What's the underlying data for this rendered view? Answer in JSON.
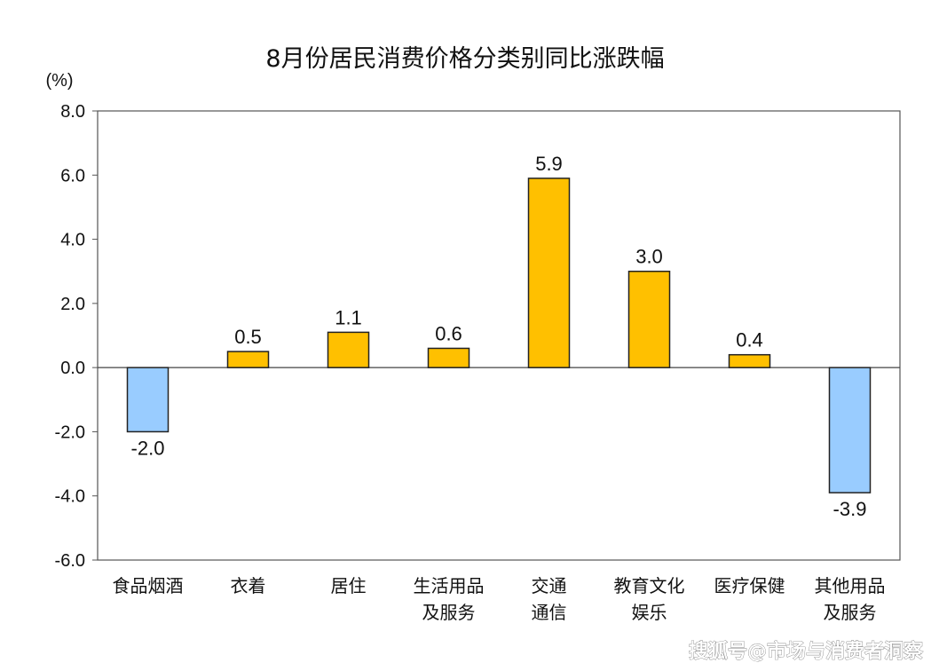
{
  "chart_data": {
    "type": "bar",
    "title": "8月份居民消费价格分类别同比涨跌幅",
    "unit_label": "(%)",
    "ylim": [
      -6.0,
      8.0
    ],
    "yticks": [
      "8.0",
      "6.0",
      "4.0",
      "2.0",
      "0.0",
      "-2.0",
      "-4.0",
      "-6.0"
    ],
    "ytick_values": [
      8,
      6,
      4,
      2,
      0,
      -2,
      -4,
      -6
    ],
    "categories": [
      [
        "食品烟酒"
      ],
      [
        "衣着"
      ],
      [
        "居住"
      ],
      [
        "生活用品",
        "及服务"
      ],
      [
        "交通",
        "通信"
      ],
      [
        "教育文化",
        "娱乐"
      ],
      [
        "医疗保健"
      ],
      [
        "其他用品",
        "及服务"
      ]
    ],
    "values": [
      -2.0,
      0.5,
      1.1,
      0.6,
      5.9,
      3.0,
      0.4,
      -3.9
    ],
    "value_labels": [
      "-2.0",
      "0.5",
      "1.1",
      "0.6",
      "5.9",
      "3.0",
      "0.4",
      "-3.9"
    ],
    "colors": {
      "positive": "#FFC000",
      "negative": "#99CCFF",
      "outline": "#222222"
    },
    "grid": false,
    "legend": "none"
  },
  "watermark": "搜狐号@市场与消费者洞察"
}
